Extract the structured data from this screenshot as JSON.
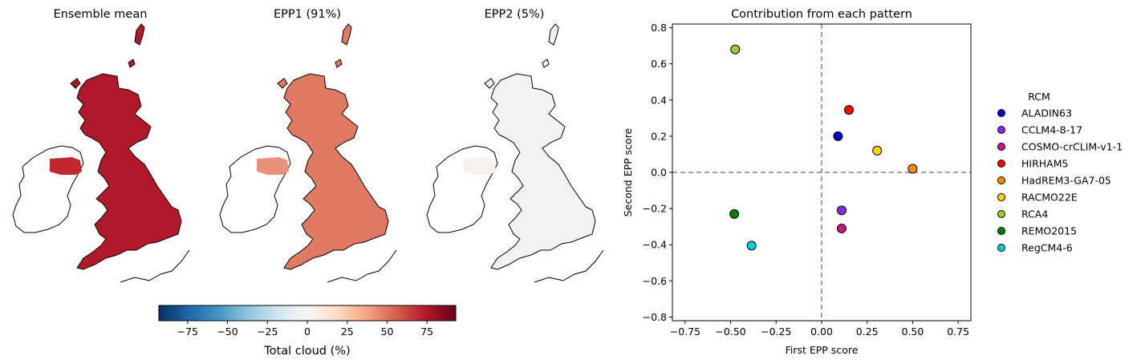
{
  "maps": [
    {
      "title": "Ensemble mean",
      "fill": "#b2182b",
      "ireland_fill": "#c0272f"
    },
    {
      "title": "EPP1 (91%)",
      "fill": "#e07a63",
      "ireland_fill": "#e8927a"
    },
    {
      "title": "EPP2 (5%)",
      "fill": "#f2f2f3",
      "ireland_fill": "#f7f1ee"
    }
  ],
  "colorbar": {
    "label": "Total cloud (%)",
    "min": -93,
    "max": 93,
    "ticks": [
      -75,
      -50,
      -25,
      0,
      25,
      50,
      75
    ],
    "tick_labels": [
      "−75",
      "−50",
      "−25",
      "0",
      "25",
      "50",
      "75"
    ],
    "colormap": [
      "#053061",
      "#2166ac",
      "#4393c3",
      "#92c5de",
      "#d1e5f0",
      "#f7f7f7",
      "#fddbc7",
      "#f4a582",
      "#d6604d",
      "#b2182b",
      "#67001f"
    ]
  },
  "chart_data": {
    "type": "scatter",
    "title": "Contribution from each pattern",
    "xlabel": "First EPP score",
    "ylabel": "Second EPP score",
    "xlim": [
      -0.82,
      0.82
    ],
    "ylim": [
      -0.82,
      0.82
    ],
    "x_ticks": [
      -0.75,
      -0.5,
      -0.25,
      0.0,
      0.25,
      0.5,
      0.75
    ],
    "x_tick_labels": [
      "−0.75",
      "−0.50",
      "−0.25",
      "0.00",
      "0.25",
      "0.50",
      "0.75"
    ],
    "y_ticks": [
      -0.8,
      -0.6,
      -0.4,
      -0.2,
      0.0,
      0.2,
      0.4,
      0.6,
      0.8
    ],
    "y_tick_labels": [
      "−0.8",
      "−0.6",
      "−0.4",
      "−0.2",
      "0.0",
      "0.2",
      "0.4",
      "0.6",
      "0.8"
    ],
    "reference_lines": {
      "x": 0.0,
      "y": 0.0,
      "style": "dashed",
      "color": "#808080"
    },
    "legend_title": "RCM",
    "legend_position": "outside right",
    "points": [
      {
        "name": "ALADIN63",
        "x": 0.09,
        "y": 0.2,
        "color": "#0000cd"
      },
      {
        "name": "CCLM4-8-17",
        "x": 0.11,
        "y": -0.21,
        "color": "#8a2be2"
      },
      {
        "name": "COSMO-crCLIM-v1-1",
        "x": 0.11,
        "y": -0.31,
        "color": "#c71585"
      },
      {
        "name": "HIRHAM5",
        "x": 0.15,
        "y": 0.345,
        "color": "#ff0000"
      },
      {
        "name": "HadREM3-GA7-05",
        "x": 0.5,
        "y": 0.02,
        "color": "#ff8c00"
      },
      {
        "name": "RACMO22E",
        "x": 0.305,
        "y": 0.12,
        "color": "#ffd700"
      },
      {
        "name": "RCA4",
        "x": -0.475,
        "y": 0.68,
        "color": "#9acd32"
      },
      {
        "name": "REMO2015",
        "x": -0.48,
        "y": -0.23,
        "color": "#008000"
      },
      {
        "name": "RegCM4-6",
        "x": -0.385,
        "y": -0.405,
        "color": "#00ced1"
      }
    ]
  }
}
